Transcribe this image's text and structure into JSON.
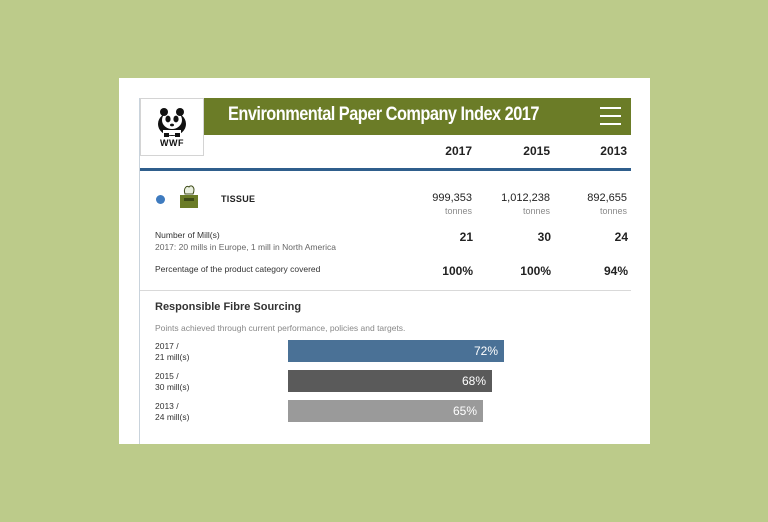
{
  "header": {
    "title": "Environmental Paper Company Index 2017",
    "logo_text": "WWF",
    "menu_icon": "hamburger-menu-icon"
  },
  "columns": {
    "years": [
      "2017",
      "2015",
      "2013"
    ]
  },
  "product": {
    "category": "TISSUE",
    "icon": "tissue-box-icon",
    "tonnage": [
      {
        "value": "999,353",
        "unit": "tonnes"
      },
      {
        "value": "1,012,238",
        "unit": "tonnes"
      },
      {
        "value": "892,655",
        "unit": "tonnes"
      }
    ],
    "mills": {
      "label": "Number of Mill(s)",
      "note": "2017: 20 mills in Europe, 1 mill in North America",
      "values": [
        "21",
        "30",
        "24"
      ]
    },
    "coverage": {
      "label": "Percentage of the product category covered",
      "values": [
        "100%",
        "100%",
        "94%"
      ]
    }
  },
  "fibre_sourcing": {
    "title": "Responsible Fibre Sourcing",
    "subtitle": "Points achieved through current performance, policies and targets.",
    "bars": [
      {
        "line1": "2017 /",
        "line2": "21 mill(s)",
        "label": "72%",
        "value": 72,
        "color": "#4a7196"
      },
      {
        "line1": "2015 /",
        "line2": "30 mill(s)",
        "label": "68%",
        "value": 68,
        "color": "#5a5a5a"
      },
      {
        "line1": "2013 /",
        "line2": "24 mill(s)",
        "label": "65%",
        "value": 65,
        "color": "#9a9a9a"
      }
    ]
  },
  "colors": {
    "header_green": "#6b7c27",
    "accent_blue": "#2f5e8c",
    "background": "#bccb8a"
  }
}
